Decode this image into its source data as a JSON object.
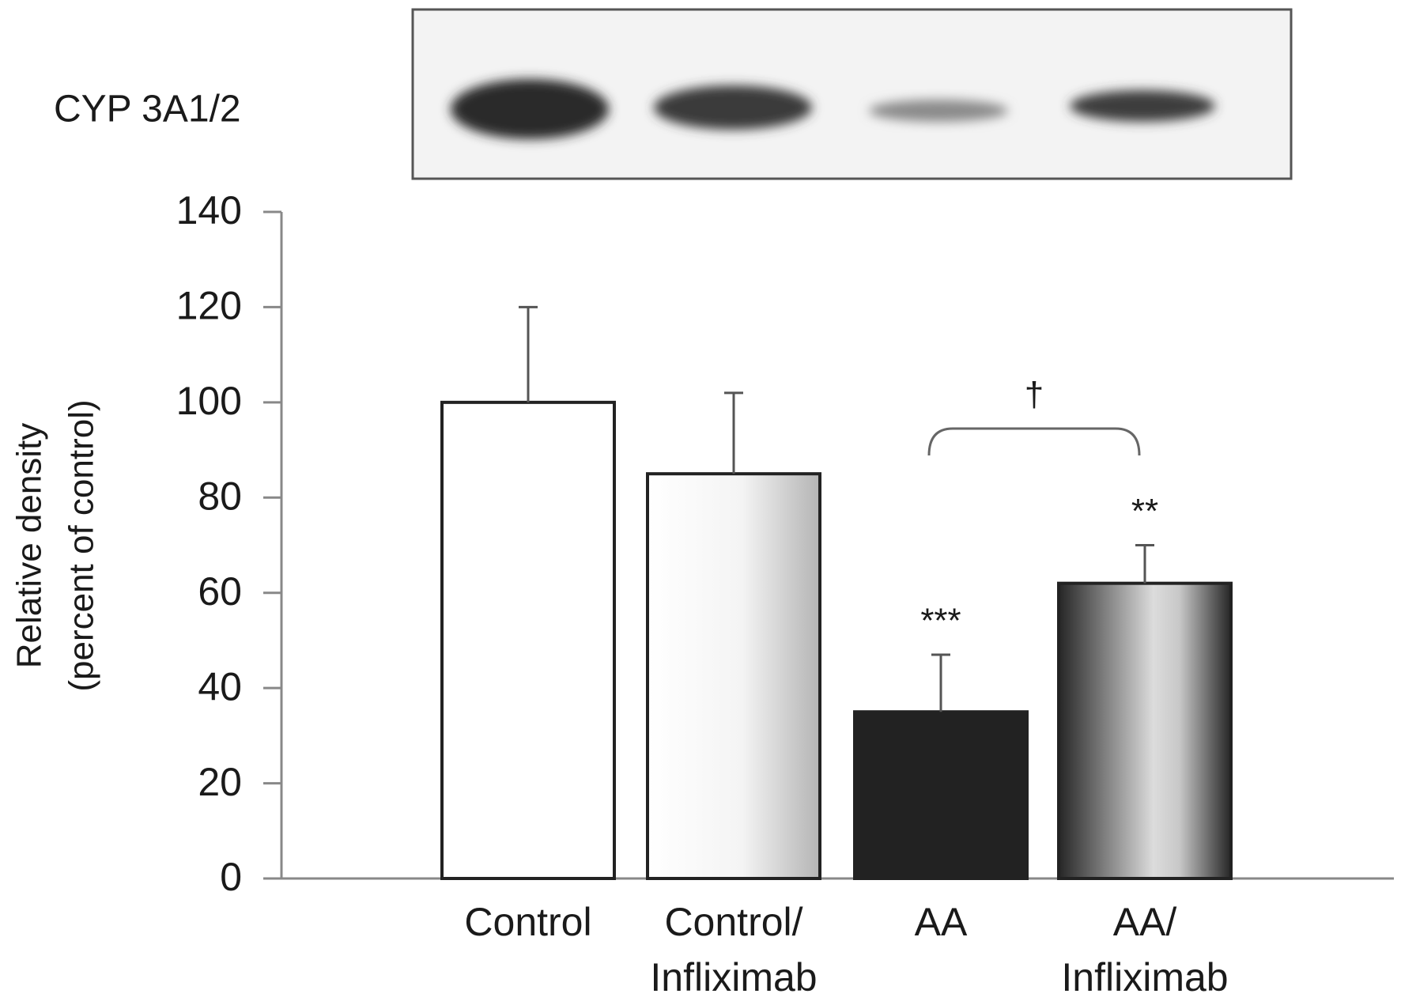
{
  "chart_data": {
    "type": "bar",
    "blot_label": "CYP 3A1/2",
    "y_label": [
      "Relative density",
      "(percent of control)"
    ],
    "categories": [
      [
        "Control"
      ],
      [
        "Control/",
        "Infliximab"
      ],
      [
        "AA"
      ],
      [
        "AA/",
        "Infliximab"
      ]
    ],
    "values": [
      100,
      85,
      35,
      62
    ],
    "errors": [
      20,
      17,
      12,
      8
    ],
    "colors": [
      "#ffffff",
      "#b4b4b4",
      "#222222",
      "#262626"
    ],
    "significance": [
      null,
      null,
      "***",
      "**"
    ],
    "bracket_label": "†",
    "ylim": [
      0,
      140
    ],
    "yticks": [
      0,
      20,
      40,
      60,
      80,
      100,
      120,
      140
    ],
    "grid": false
  }
}
